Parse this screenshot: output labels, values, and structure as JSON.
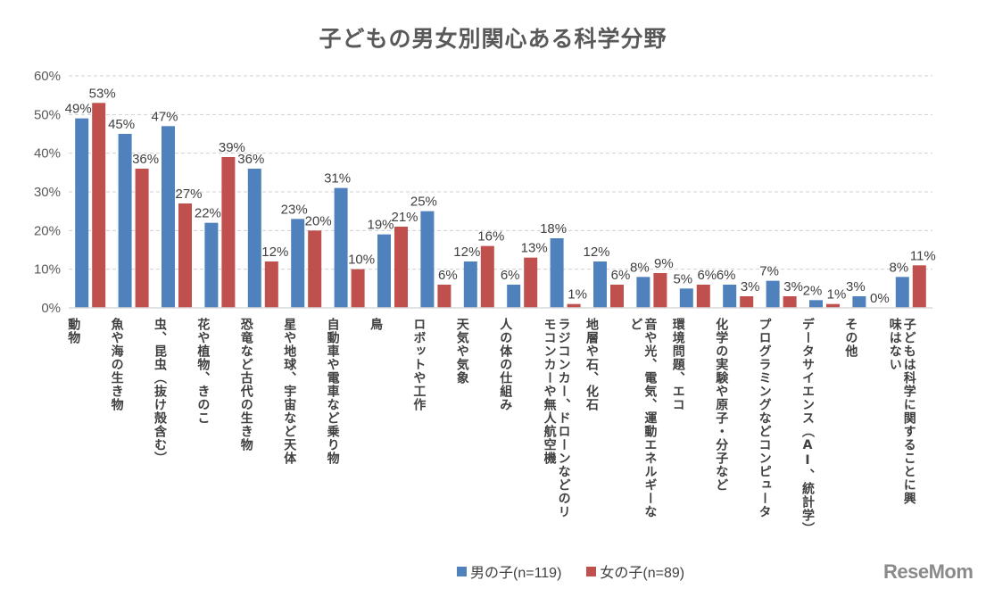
{
  "chart_data": {
    "type": "bar",
    "title": "子どもの男女別関心ある科学分野",
    "xlabel": "",
    "ylabel": "",
    "ylim": [
      0,
      60
    ],
    "yticks": [
      "0%",
      "10%",
      "20%",
      "30%",
      "40%",
      "50%",
      "60%"
    ],
    "ytick_values": [
      0,
      10,
      20,
      30,
      40,
      50,
      60
    ],
    "grid": true,
    "legend_position": "bottom",
    "categories": [
      "動物",
      "魚や海の生き物",
      "虫、昆虫（抜け殻含む）",
      "花や植物、きのこ",
      "恐竜など古代の生き物",
      "星や地球、宇宙など天体",
      "自動車や電車など乗り物",
      "鳥",
      "ロボットや工作",
      "天気や気象",
      "人の体の仕組み",
      "ラジコンカー、ドローンなどのリモコンカーや無人航空機",
      "地層や石、化石",
      "音や光、電気、運動エネルギーなど",
      "環境問題、エコ",
      "化学の実験や原子・分子など",
      "プログラミングなどコンピュータ",
      "データサイエンス（AI、統計学）",
      "その他",
      "子どもは科学に関することに興味はない"
    ],
    "category_lines": [
      [
        "動物"
      ],
      [
        "魚や海の生き物"
      ],
      [
        "虫、昆虫（抜け殻含む）"
      ],
      [
        "花や植物、きのこ"
      ],
      [
        "恐竜など古代の生き物"
      ],
      [
        "星や地球、宇宙など天体"
      ],
      [
        "自動車や電車など乗り物"
      ],
      [
        "鳥"
      ],
      [
        "ロボットや工作"
      ],
      [
        "天気や気象"
      ],
      [
        "人の体の仕組み"
      ],
      [
        "ラジコンカー、ドローンなどのリ",
        "モコンカーや無人航空機"
      ],
      [
        "地層や石、化石"
      ],
      [
        "音や光、電気、運動エネルギーな",
        "ど"
      ],
      [
        "環境問題、エコ"
      ],
      [
        "化学の実験や原子・分子など"
      ],
      [
        "プログラミングなどコンピュータ"
      ],
      [
        "データサイエンス（AI、統計学）"
      ],
      [
        "その他"
      ],
      [
        "子どもは科学に関することに興",
        "味はない"
      ]
    ],
    "series": [
      {
        "name": "男の子(n=119)",
        "color": "#4F81BD",
        "values": [
          49,
          45,
          47,
          22,
          36,
          23,
          31,
          19,
          25,
          12,
          6,
          18,
          12,
          8,
          5,
          6,
          7,
          2,
          3,
          8
        ],
        "labels": [
          "49%",
          "45%",
          "47%",
          "22%",
          "36%",
          "23%",
          "31%",
          "19%",
          "25%",
          "12%",
          "6%",
          "18%",
          "12%",
          "8%",
          "5%",
          "6%",
          "7%",
          "2%",
          "3%",
          "8%"
        ]
      },
      {
        "name": "女の子(n=89)",
        "color": "#C0504D",
        "values": [
          53,
          36,
          27,
          39,
          12,
          20,
          10,
          21,
          6,
          16,
          13,
          1,
          6,
          9,
          6,
          3,
          3,
          1,
          0,
          11
        ],
        "labels": [
          "53%",
          "36%",
          "27%",
          "39%",
          "12%",
          "20%",
          "10%",
          "21%",
          "6%",
          "16%",
          "13%",
          "1%",
          "6%",
          "9%",
          "6%",
          "3%",
          "3%",
          "1%",
          "0%",
          "11%"
        ]
      }
    ]
  },
  "legend": {
    "items": [
      {
        "label": "男の子(n=119)",
        "color": "#4F81BD"
      },
      {
        "label": "女の子(n=89)",
        "color": "#C0504D"
      }
    ]
  },
  "watermark": "ReseMom"
}
